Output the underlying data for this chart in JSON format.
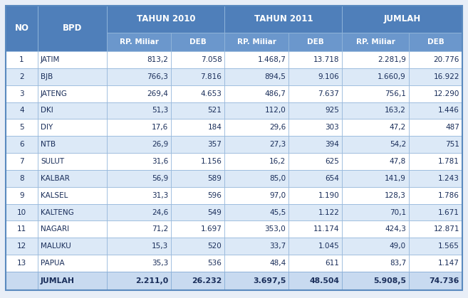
{
  "col_headers_row1": [
    "NO",
    "BPD",
    "TAHUN 2010",
    "TAHUN 2011",
    "JUMLAH"
  ],
  "col_headers_row2": [
    "RP. Miliar",
    "DEB",
    "RP. Miliar",
    "DEB",
    "RP. Miliar",
    "DEB"
  ],
  "rows": [
    [
      "1",
      "JATIM",
      "813,2",
      "7.058",
      "1.468,7",
      "13.718",
      "2.281,9",
      "20.776"
    ],
    [
      "2",
      "BJB",
      "766,3",
      "7.816",
      "894,5",
      "9.106",
      "1.660,9",
      "16.922"
    ],
    [
      "3",
      "JATENG",
      "269,4",
      "4.653",
      "486,7",
      "7.637",
      "756,1",
      "12.290"
    ],
    [
      "4",
      "DKI",
      "51,3",
      "521",
      "112,0",
      "925",
      "163,2",
      "1.446"
    ],
    [
      "5",
      "DIY",
      "17,6",
      "184",
      "29,6",
      "303",
      "47,2",
      "487"
    ],
    [
      "6",
      "NTB",
      "26,9",
      "357",
      "27,3",
      "394",
      "54,2",
      "751"
    ],
    [
      "7",
      "SULUT",
      "31,6",
      "1.156",
      "16,2",
      "625",
      "47,8",
      "1.781"
    ],
    [
      "8",
      "KALBAR",
      "56,9",
      "589",
      "85,0",
      "654",
      "141,9",
      "1.243"
    ],
    [
      "9",
      "KALSEL",
      "31,3",
      "596",
      "97,0",
      "1.190",
      "128,3",
      "1.786"
    ],
    [
      "10",
      "KALTENG",
      "24,6",
      "549",
      "45,5",
      "1.122",
      "70,1",
      "1.671"
    ],
    [
      "11",
      "NAGARI",
      "71,2",
      "1.697",
      "353,0",
      "11.174",
      "424,3",
      "12.871"
    ],
    [
      "12",
      "MALUKU",
      "15,3",
      "520",
      "33,7",
      "1.045",
      "49,0",
      "1.565"
    ],
    [
      "13",
      "PAPUA",
      "35,3",
      "536",
      "48,4",
      "611",
      "83,7",
      "1.147"
    ]
  ],
  "footer": [
    "",
    "JUMLAH",
    "2.211,0",
    "26.232",
    "3.697,5",
    "48.504",
    "5.908,5",
    "74.736"
  ],
  "header_bg": "#4f7fba",
  "subheader_bg": "#6b97cc",
  "row_bg_odd": "#ffffff",
  "row_bg_even": "#dce9f7",
  "footer_bg": "#c8daf0",
  "header_text_color": "#ffffff",
  "cell_text_color": "#1a2e5a",
  "border_color": "#8fb3d9",
  "outer_bg": "#e8eef7",
  "figsize": [
    6.57,
    4.19
  ],
  "dpi": 100
}
